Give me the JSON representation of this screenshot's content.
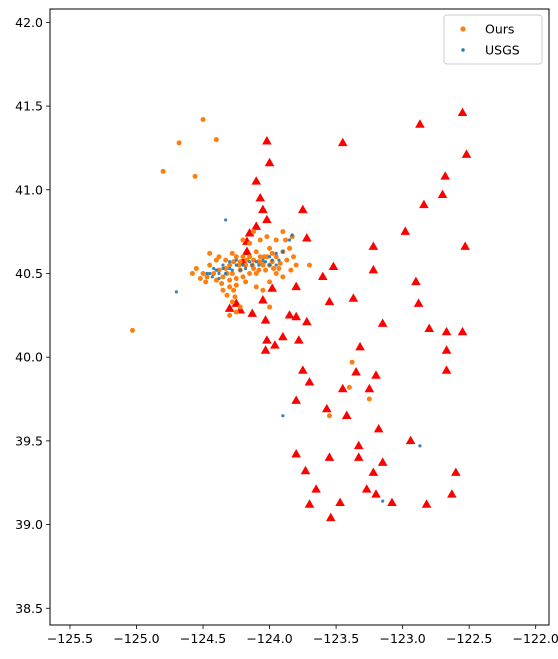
{
  "chart_data": {
    "type": "scatter",
    "title": "",
    "xlabel": "",
    "ylabel": "",
    "xlim": [
      -125.65,
      -121.9
    ],
    "ylim": [
      38.4,
      42.08
    ],
    "xticks": [
      -125.5,
      -125.0,
      -124.5,
      -124.0,
      -123.5,
      -123.0,
      -122.5,
      -122.0
    ],
    "yticks": [
      38.5,
      39.0,
      39.5,
      40.0,
      40.5,
      41.0,
      41.5,
      42.0
    ],
    "xtick_labels": [
      "−125.5",
      "−125.0",
      "−124.5",
      "−124.0",
      "−123.5",
      "−123.0",
      "−122.5",
      "−122.0"
    ],
    "ytick_labels": [
      "38.5",
      "39.0",
      "39.5",
      "40.0",
      "40.5",
      "41.0",
      "41.5",
      "42.0"
    ],
    "grid": false,
    "legend_position": "top-right",
    "series": [
      {
        "name": "Ours",
        "marker": "circle",
        "color": "#ff7f0e",
        "points": [
          [
            -124.5,
            41.42
          ],
          [
            -124.68,
            41.28
          ],
          [
            -124.4,
            41.3
          ],
          [
            -124.8,
            41.11
          ],
          [
            -124.56,
            41.08
          ],
          [
            -125.03,
            40.16
          ],
          [
            -124.45,
            40.62
          ],
          [
            -124.38,
            40.6
          ],
          [
            -124.33,
            40.58
          ],
          [
            -124.3,
            40.55
          ],
          [
            -124.28,
            40.62
          ],
          [
            -124.25,
            40.6
          ],
          [
            -124.22,
            40.57
          ],
          [
            -124.2,
            40.6
          ],
          [
            -124.18,
            40.55
          ],
          [
            -124.15,
            40.6
          ],
          [
            -124.12,
            40.58
          ],
          [
            -124.1,
            40.63
          ],
          [
            -124.07,
            40.6
          ],
          [
            -124.05,
            40.56
          ],
          [
            -124.02,
            40.6
          ],
          [
            -124.0,
            40.65
          ],
          [
            -123.98,
            40.62
          ],
          [
            -123.95,
            40.6
          ],
          [
            -123.92,
            40.56
          ],
          [
            -123.9,
            40.63
          ],
          [
            -123.88,
            40.7
          ],
          [
            -123.85,
            40.65
          ],
          [
            -123.83,
            40.72
          ],
          [
            -123.82,
            40.6
          ],
          [
            -123.8,
            40.55
          ],
          [
            -123.84,
            40.52
          ],
          [
            -123.9,
            40.75
          ],
          [
            -123.95,
            40.7
          ],
          [
            -124.02,
            40.72
          ],
          [
            -124.07,
            40.7
          ],
          [
            -124.15,
            40.68
          ],
          [
            -124.2,
            40.7
          ],
          [
            -124.5,
            40.5
          ],
          [
            -124.47,
            40.48
          ],
          [
            -124.42,
            40.5
          ],
          [
            -124.4,
            40.46
          ],
          [
            -124.38,
            40.52
          ],
          [
            -124.35,
            40.48
          ],
          [
            -124.32,
            40.5
          ],
          [
            -124.3,
            40.46
          ],
          [
            -124.28,
            40.5
          ],
          [
            -124.25,
            40.47
          ],
          [
            -124.22,
            40.52
          ],
          [
            -124.2,
            40.48
          ],
          [
            -124.18,
            40.45
          ],
          [
            -124.15,
            40.5
          ],
          [
            -124.12,
            40.53
          ],
          [
            -124.1,
            40.5
          ],
          [
            -124.08,
            40.52
          ],
          [
            -124.05,
            40.55
          ],
          [
            -124.03,
            40.52
          ],
          [
            -124.0,
            40.55
          ],
          [
            -123.97,
            40.53
          ],
          [
            -123.95,
            40.5
          ],
          [
            -124.55,
            40.53
          ],
          [
            -124.58,
            40.5
          ],
          [
            -124.52,
            40.47
          ],
          [
            -124.48,
            40.45
          ],
          [
            -124.3,
            40.42
          ],
          [
            -124.27,
            40.4
          ],
          [
            -124.25,
            40.43
          ],
          [
            -124.32,
            40.37
          ],
          [
            -124.28,
            40.33
          ],
          [
            -124.22,
            40.3
          ],
          [
            -124.25,
            40.27
          ],
          [
            -124.3,
            40.25
          ],
          [
            -124.1,
            40.42
          ],
          [
            -124.05,
            40.4
          ],
          [
            -124.0,
            40.45
          ],
          [
            -123.9,
            40.48
          ],
          [
            -124.35,
            40.4
          ],
          [
            -124.0,
            40.3
          ],
          [
            -123.4,
            39.82
          ],
          [
            -123.38,
            39.97
          ],
          [
            -123.25,
            39.75
          ],
          [
            -123.55,
            39.65
          ],
          [
            -123.7,
            40.55
          ],
          [
            -124.12,
            40.75
          ],
          [
            -124.45,
            40.55
          ],
          [
            -124.4,
            40.58
          ],
          [
            -124.33,
            40.53
          ],
          [
            -124.27,
            40.57
          ],
          [
            -124.23,
            40.55
          ],
          [
            -124.17,
            40.58
          ],
          [
            -124.13,
            40.55
          ],
          [
            -124.08,
            40.57
          ],
          [
            -124.04,
            40.6
          ],
          [
            -123.98,
            40.57
          ],
          [
            -123.93,
            40.53
          ],
          [
            -123.87,
            40.58
          ],
          [
            -124.36,
            40.44
          ],
          [
            -124.26,
            40.36
          ]
        ]
      },
      {
        "name": "USGS",
        "marker": "circle",
        "color": "#1f77b4",
        "points": [
          [
            -124.35,
            40.53
          ],
          [
            -124.3,
            40.53
          ],
          [
            -124.25,
            40.55
          ],
          [
            -124.2,
            40.55
          ],
          [
            -124.15,
            40.57
          ],
          [
            -124.1,
            40.57
          ],
          [
            -124.05,
            40.58
          ],
          [
            -124.0,
            40.6
          ],
          [
            -123.95,
            40.62
          ],
          [
            -123.9,
            40.63
          ],
          [
            -123.85,
            40.7
          ],
          [
            -123.83,
            40.73
          ],
          [
            -124.4,
            40.52
          ],
          [
            -124.45,
            40.5
          ],
          [
            -124.42,
            40.53
          ],
          [
            -124.38,
            40.5
          ],
          [
            -124.33,
            40.5
          ],
          [
            -124.28,
            40.52
          ],
          [
            -124.22,
            40.52
          ],
          [
            -124.18,
            40.53
          ],
          [
            -124.13,
            40.55
          ],
          [
            -124.08,
            40.55
          ],
          [
            -124.03,
            40.57
          ],
          [
            -123.98,
            40.58
          ],
          [
            -123.93,
            40.58
          ],
          [
            -124.47,
            40.5
          ],
          [
            -124.43,
            40.48
          ],
          [
            -124.33,
            40.82
          ],
          [
            -124.7,
            40.39
          ],
          [
            -123.9,
            39.65
          ],
          [
            -122.87,
            39.47
          ],
          [
            -123.15,
            39.14
          ],
          [
            -124.35,
            40.55
          ],
          [
            -124.3,
            40.57
          ],
          [
            -124.25,
            40.58
          ],
          [
            -124.38,
            40.47
          ],
          [
            -124.0,
            40.55
          ],
          [
            -123.95,
            40.55
          ]
        ]
      },
      {
        "name": "",
        "marker": "triangle",
        "color": "#ff0000",
        "points": [
          [
            -124.02,
            41.29
          ],
          [
            -124.0,
            41.16
          ],
          [
            -123.45,
            41.28
          ],
          [
            -122.87,
            41.39
          ],
          [
            -122.55,
            41.46
          ],
          [
            -122.52,
            41.21
          ],
          [
            -124.1,
            41.05
          ],
          [
            -124.07,
            40.95
          ],
          [
            -124.05,
            40.88
          ],
          [
            -124.02,
            40.82
          ],
          [
            -124.1,
            40.78
          ],
          [
            -124.15,
            40.74
          ],
          [
            -124.17,
            40.69
          ],
          [
            -124.17,
            40.63
          ],
          [
            -124.2,
            40.57
          ],
          [
            -123.75,
            40.88
          ],
          [
            -123.72,
            40.71
          ],
          [
            -123.22,
            40.66
          ],
          [
            -122.98,
            40.75
          ],
          [
            -122.84,
            40.91
          ],
          [
            -122.7,
            40.97
          ],
          [
            -122.68,
            41.08
          ],
          [
            -122.53,
            40.66
          ],
          [
            -123.6,
            40.48
          ],
          [
            -123.52,
            40.54
          ],
          [
            -123.22,
            40.52
          ],
          [
            -122.9,
            40.45
          ],
          [
            -123.8,
            40.42
          ],
          [
            -123.98,
            40.41
          ],
          [
            -123.55,
            40.33
          ],
          [
            -123.37,
            40.35
          ],
          [
            -122.88,
            40.32
          ],
          [
            -124.05,
            40.34
          ],
          [
            -124.25,
            40.32
          ],
          [
            -124.3,
            40.29
          ],
          [
            -124.22,
            40.28
          ],
          [
            -124.13,
            40.26
          ],
          [
            -124.03,
            40.22
          ],
          [
            -123.85,
            40.25
          ],
          [
            -123.8,
            40.24
          ],
          [
            -123.72,
            40.21
          ],
          [
            -123.15,
            40.2
          ],
          [
            -122.8,
            40.17
          ],
          [
            -122.67,
            40.15
          ],
          [
            -122.55,
            40.15
          ],
          [
            -123.9,
            40.12
          ],
          [
            -123.78,
            40.1
          ],
          [
            -124.02,
            40.1
          ],
          [
            -123.96,
            40.07
          ],
          [
            -124.03,
            40.04
          ],
          [
            -123.32,
            40.06
          ],
          [
            -122.67,
            40.04
          ],
          [
            -123.75,
            39.92
          ],
          [
            -123.35,
            39.91
          ],
          [
            -123.2,
            39.89
          ],
          [
            -122.67,
            39.92
          ],
          [
            -123.7,
            39.85
          ],
          [
            -123.45,
            39.81
          ],
          [
            -123.25,
            39.81
          ],
          [
            -123.8,
            39.74
          ],
          [
            -123.57,
            39.69
          ],
          [
            -123.42,
            39.65
          ],
          [
            -123.18,
            39.57
          ],
          [
            -123.33,
            39.47
          ],
          [
            -122.94,
            39.5
          ],
          [
            -123.8,
            39.42
          ],
          [
            -123.55,
            39.4
          ],
          [
            -123.33,
            39.4
          ],
          [
            -123.15,
            39.37
          ],
          [
            -123.73,
            39.32
          ],
          [
            -123.22,
            39.31
          ],
          [
            -122.6,
            39.31
          ],
          [
            -123.65,
            39.21
          ],
          [
            -123.27,
            39.21
          ],
          [
            -123.2,
            39.18
          ],
          [
            -122.63,
            39.18
          ],
          [
            -123.7,
            39.12
          ],
          [
            -123.47,
            39.13
          ],
          [
            -123.08,
            39.13
          ],
          [
            -122.82,
            39.12
          ],
          [
            -123.54,
            39.04
          ]
        ]
      }
    ],
    "legend": {
      "entries": [
        "Ours",
        "USGS"
      ]
    }
  }
}
